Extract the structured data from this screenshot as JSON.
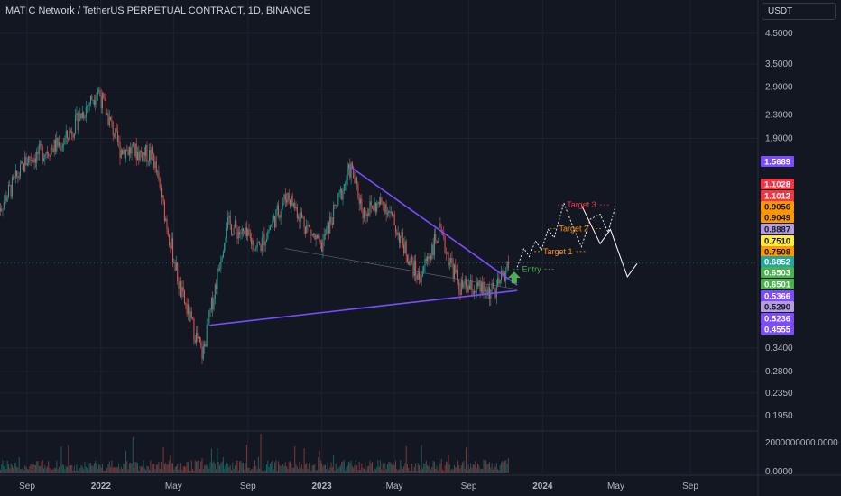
{
  "header": {
    "title": "MATIC Network / TetherUS PERPETUAL CONTRACT, 1D, BINANCE",
    "currency": "USDT"
  },
  "colors": {
    "background": "#131722",
    "up": "#26a69a",
    "down": "#ef5350",
    "trendline": "#7b4dff",
    "entry": "#4caf50",
    "target1": "#ff9800",
    "target2": "#ff9800",
    "target3": "#f23645",
    "projection": "#ffffff"
  },
  "chart_data": {
    "type": "candlestick",
    "title": "MATIC Network / TetherUS PERPETUAL CONTRACT, 1D, BINANCE",
    "y_scale": "log",
    "ylim": [
      0.17,
      5.5
    ],
    "y_ticks": [
      "4.5000",
      "3.5000",
      "2.9000",
      "2.3000",
      "1.9000",
      "0.3400",
      "0.2800",
      "0.2350",
      "0.1950"
    ],
    "x_ticks": [
      "Sep",
      "2022",
      "May",
      "Sep",
      "2023",
      "May",
      "Sep",
      "2024",
      "May",
      "Sep"
    ],
    "price_anchors": [
      {
        "date": "2021-07-15",
        "price": 1.05
      },
      {
        "date": "2021-09-01",
        "price": 1.6
      },
      {
        "date": "2021-11-01",
        "price": 1.85
      },
      {
        "date": "2021-12-27",
        "price": 2.85
      },
      {
        "date": "2022-02-01",
        "price": 1.75
      },
      {
        "date": "2022-03-28",
        "price": 1.65
      },
      {
        "date": "2022-05-12",
        "price": 0.55
      },
      {
        "date": "2022-06-18",
        "price": 0.32
      },
      {
        "date": "2022-07-28",
        "price": 0.95
      },
      {
        "date": "2022-09-20",
        "price": 0.78
      },
      {
        "date": "2022-11-05",
        "price": 1.2
      },
      {
        "date": "2022-12-30",
        "price": 0.77
      },
      {
        "date": "2023-02-18",
        "price": 1.5
      },
      {
        "date": "2023-03-10",
        "price": 1.05
      },
      {
        "date": "2023-04-15",
        "price": 1.12
      },
      {
        "date": "2023-06-10",
        "price": 0.6
      },
      {
        "date": "2023-07-14",
        "price": 0.88
      },
      {
        "date": "2023-08-18",
        "price": 0.56
      },
      {
        "date": "2023-10-15",
        "price": 0.54
      },
      {
        "date": "2023-11-06",
        "price": 0.68
      }
    ],
    "volume_axis": [
      "2000000000.0000",
      "0.0000"
    ],
    "trendlines": [
      {
        "from": {
          "date": "2023-02-18",
          "price": 1.5
        },
        "to": {
          "date": "2023-11-20",
          "price": 0.57
        }
      },
      {
        "from": {
          "date": "2022-06-30",
          "price": 0.41
        },
        "to": {
          "date": "2023-11-20",
          "price": 0.545
        }
      }
    ],
    "price_labels": [
      {
        "value": "1.5689",
        "color": "#7b4dff"
      },
      {
        "value": "1.1028",
        "color": "#f23645"
      },
      {
        "value": "1.1012",
        "color": "#f23645"
      },
      {
        "value": "0.9056",
        "color": "#ff9800"
      },
      {
        "value": "0.9049",
        "color": "#ff9800"
      },
      {
        "value": "0.8887",
        "color": "#b39ddb"
      },
      {
        "value": "0.7510",
        "color": "#ffeb3b"
      },
      {
        "value": "0.7508",
        "color": "#ff9800"
      },
      {
        "value": "0.6852",
        "color": "#26a69a"
      },
      {
        "value": "0.6503",
        "color": "#4caf50"
      },
      {
        "value": "0.6501",
        "color": "#4caf50"
      },
      {
        "value": "0.5366",
        "color": "#7b4dff"
      },
      {
        "value": "0.5290",
        "color": "#b39ddb"
      },
      {
        "value": "0.5236",
        "color": "#7b4dff"
      },
      {
        "value": "0.4555",
        "color": "#7b4dff"
      }
    ],
    "annotations": [
      {
        "label": "Entry",
        "price": 0.6503,
        "color": "#4caf50"
      },
      {
        "label": "Target 1",
        "price": 0.7508,
        "color": "#ff9800"
      },
      {
        "label": "Target 2",
        "price": 0.9049,
        "color": "#ff9800"
      },
      {
        "label": "Target 3",
        "price": 1.1012,
        "color": "#f23645"
      }
    ],
    "projection_path": [
      {
        "date": "2023-11-20",
        "price": 0.66
      },
      {
        "date": "2023-12-01",
        "price": 0.77
      },
      {
        "date": "2023-12-10",
        "price": 0.72
      },
      {
        "date": "2023-12-20",
        "price": 0.82
      },
      {
        "date": "2023-12-30",
        "price": 0.76
      },
      {
        "date": "2024-01-10",
        "price": 0.9
      },
      {
        "date": "2024-01-20",
        "price": 0.84
      },
      {
        "date": "2024-02-05",
        "price": 1.12
      },
      {
        "date": "2024-02-20",
        "price": 0.92
      },
      {
        "date": "2024-03-05",
        "price": 0.78
      },
      {
        "date": "2024-03-20",
        "price": 0.98
      },
      {
        "date": "2024-04-05",
        "price": 1.02
      },
      {
        "date": "2024-04-18",
        "price": 0.88
      },
      {
        "date": "2024-04-30",
        "price": 1.08
      }
    ],
    "projection_path_2": [
      {
        "date": "2024-03-05",
        "price": 1.1
      },
      {
        "date": "2024-04-05",
        "price": 0.8
      },
      {
        "date": "2024-04-22",
        "price": 0.9
      },
      {
        "date": "2024-05-20",
        "price": 0.61
      },
      {
        "date": "2024-06-05",
        "price": 0.68
      }
    ]
  }
}
